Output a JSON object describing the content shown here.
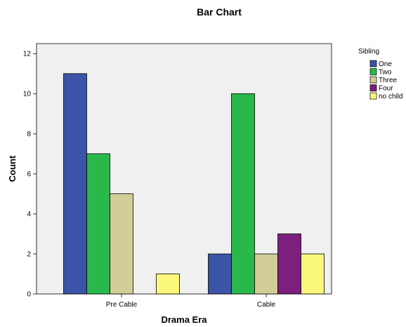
{
  "chart_data": {
    "type": "bar",
    "title": "Bar Chart",
    "xlabel": "Drama Era",
    "ylabel": "Count",
    "categories": [
      "Pre Cable",
      "Cable"
    ],
    "ylim": [
      0,
      12.5
    ],
    "yticks": [
      0,
      2,
      4,
      6,
      8,
      10,
      12
    ],
    "legend": {
      "title": "Sibling",
      "placement": "right",
      "entries": [
        "One",
        "Two",
        "Three",
        "Four",
        "no child"
      ]
    },
    "series": [
      {
        "name": "One",
        "color": "#3b54a8",
        "values": [
          11,
          2
        ]
      },
      {
        "name": "Two",
        "color": "#2ab84a",
        "values": [
          7,
          10
        ]
      },
      {
        "name": "Three",
        "color": "#d3cd98",
        "values": [
          5,
          2
        ]
      },
      {
        "name": "Four",
        "color": "#7d1f7c",
        "values": [
          0,
          3
        ]
      },
      {
        "name": "no child",
        "color": "#fbf87c",
        "values": [
          1,
          2
        ]
      }
    ],
    "plot_background": "#f0f0f0",
    "grid": false
  }
}
